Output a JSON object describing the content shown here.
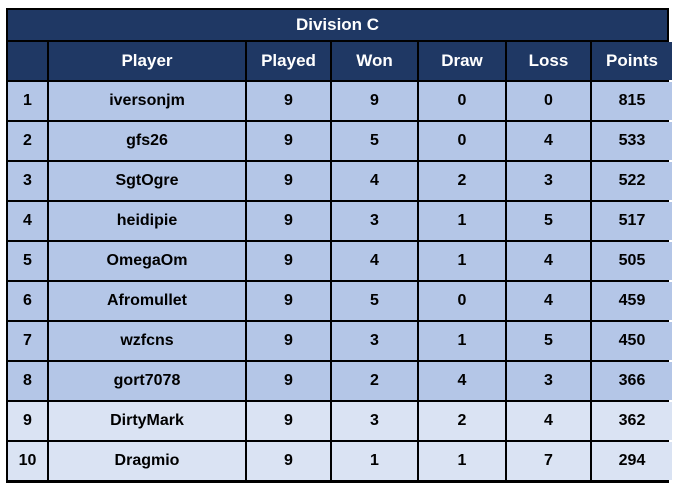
{
  "table": {
    "title": "Division C",
    "columns": [
      "",
      "Player",
      "Played",
      "Won",
      "Draw",
      "Loss",
      "Points"
    ],
    "rows": [
      {
        "rank": "1",
        "player": "iversonjm",
        "played": "9",
        "won": "9",
        "draw": "0",
        "loss": "0",
        "points": "815"
      },
      {
        "rank": "2",
        "player": "gfs26",
        "played": "9",
        "won": "5",
        "draw": "0",
        "loss": "4",
        "points": "533"
      },
      {
        "rank": "3",
        "player": "SgtOgre",
        "played": "9",
        "won": "4",
        "draw": "2",
        "loss": "3",
        "points": "522"
      },
      {
        "rank": "4",
        "player": "heidipie",
        "played": "9",
        "won": "3",
        "draw": "1",
        "loss": "5",
        "points": "517"
      },
      {
        "rank": "5",
        "player": "OmegaOm",
        "played": "9",
        "won": "4",
        "draw": "1",
        "loss": "4",
        "points": "505"
      },
      {
        "rank": "6",
        "player": "Afromullet",
        "played": "9",
        "won": "5",
        "draw": "0",
        "loss": "4",
        "points": "459"
      },
      {
        "rank": "7",
        "player": "wzfcns",
        "played": "9",
        "won": "3",
        "draw": "1",
        "loss": "5",
        "points": "450"
      },
      {
        "rank": "8",
        "player": "gort7078",
        "played": "9",
        "won": "2",
        "draw": "4",
        "loss": "3",
        "points": "366"
      },
      {
        "rank": "9",
        "player": "DirtyMark",
        "played": "9",
        "won": "3",
        "draw": "2",
        "loss": "4",
        "points": "362"
      },
      {
        "rank": "10",
        "player": "Dragmio",
        "played": "9",
        "won": "1",
        "draw": "1",
        "loss": "7",
        "points": "294"
      }
    ]
  },
  "colors": {
    "header_bg": "#1f3864",
    "header_text": "#ffffff",
    "row_dark": "#b4c6e7",
    "row_light": "#dae3f3",
    "border": "#000000"
  }
}
